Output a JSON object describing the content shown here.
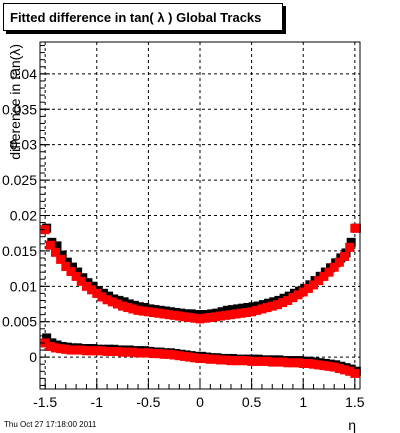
{
  "chart_data": {
    "type": "scatter",
    "title": "Fitted difference in tan( λ )  Global Tracks",
    "xlabel": "η",
    "ylabel": "difference in tan(λ)",
    "xlim": [
      -1.55,
      1.55
    ],
    "ylim": [
      -0.0045,
      0.0445
    ],
    "grid": true,
    "x_ticks": [
      -1.5,
      -1,
      -0.5,
      0,
      0.5,
      1,
      1.5
    ],
    "x_tick_labels": [
      "-1.5",
      "-1",
      "-0.5",
      "0",
      "0.5",
      "1",
      "1.5"
    ],
    "y_ticks": [
      0,
      0.005,
      0.01,
      0.015,
      0.02,
      0.025,
      0.03,
      0.035,
      0.04
    ],
    "y_tick_labels": [
      "0",
      "0.005",
      "0.01",
      "0.015",
      "0.02",
      "0.025",
      "0.03",
      "0.035",
      "0.04"
    ],
    "colors": {
      "series_a": "#000000",
      "series_b": "#ff0000"
    },
    "series": [
      {
        "marker": "square",
        "color": "#000000",
        "x": [
          -1.5,
          -1.45,
          -1.4,
          -1.35,
          -1.3,
          -1.25,
          -1.2,
          -1.15,
          -1.1,
          -1.05,
          -1.0,
          -0.95,
          -0.9,
          -0.85,
          -0.8,
          -0.75,
          -0.7,
          -0.65,
          -0.6,
          -0.55,
          -0.5,
          -0.45,
          -0.4,
          -0.35,
          -0.3,
          -0.25,
          -0.2,
          -0.15,
          -0.1,
          -0.05,
          0.0,
          0.05,
          0.1,
          0.15,
          0.2,
          0.25,
          0.3,
          0.35,
          0.4,
          0.45,
          0.5,
          0.55,
          0.6,
          0.65,
          0.7,
          0.75,
          0.8,
          0.85,
          0.9,
          0.95,
          1.0,
          1.05,
          1.1,
          1.15,
          1.2,
          1.25,
          1.3,
          1.35,
          1.4,
          1.45,
          1.5
        ],
        "y_upper": [
          0.018,
          0.016,
          0.0155,
          0.0142,
          0.0132,
          0.0125,
          0.0118,
          0.011,
          0.0103,
          0.0098,
          0.0092,
          0.0088,
          0.0084,
          0.008,
          0.0078,
          0.0076,
          0.0073,
          0.0071,
          0.0069,
          0.0068,
          0.0066,
          0.0065,
          0.0064,
          0.0063,
          0.0062,
          0.0061,
          0.006,
          0.0059,
          0.0059,
          0.0058,
          0.0058,
          0.0058,
          0.0059,
          0.006,
          0.0062,
          0.0064,
          0.0065,
          0.0066,
          0.0067,
          0.0068,
          0.0069,
          0.007,
          0.0072,
          0.0074,
          0.0076,
          0.0078,
          0.0081,
          0.0084,
          0.0088,
          0.0091,
          0.0095,
          0.01,
          0.0106,
          0.0112,
          0.0118,
          0.0124,
          0.0131,
          0.0138,
          0.0145,
          0.016,
          0.018
        ],
        "y_lower": [
          0.0025,
          0.0018,
          0.0015,
          0.0013,
          0.0012,
          0.0011,
          0.0011,
          0.001,
          0.001,
          0.001,
          0.0009,
          0.0009,
          0.0009,
          0.0009,
          0.0008,
          0.0008,
          0.0008,
          0.0007,
          0.0007,
          0.0007,
          0.0006,
          0.0005,
          0.0005,
          0.0004,
          0.0004,
          0.0003,
          0.0002,
          0.0001,
          0.0,
          -0.0001,
          -0.0001,
          -0.0002,
          -0.0003,
          -0.0003,
          -0.0004,
          -0.0004,
          -0.0004,
          -0.0005,
          -0.0005,
          -0.0005,
          -0.0005,
          -0.0005,
          -0.0006,
          -0.0006,
          -0.0006,
          -0.0006,
          -0.0007,
          -0.0007,
          -0.0007,
          -0.0007,
          -0.0008,
          -0.0008,
          -0.0009,
          -0.001,
          -0.0011,
          -0.0012,
          -0.0013,
          -0.0015,
          -0.0017,
          -0.0019,
          -0.0022
        ]
      },
      {
        "marker": "square",
        "color": "#ff0000",
        "x": [
          -1.5,
          -1.45,
          -1.4,
          -1.35,
          -1.3,
          -1.25,
          -1.2,
          -1.15,
          -1.1,
          -1.05,
          -1.0,
          -0.95,
          -0.9,
          -0.85,
          -0.8,
          -0.75,
          -0.7,
          -0.65,
          -0.6,
          -0.55,
          -0.5,
          -0.45,
          -0.4,
          -0.35,
          -0.3,
          -0.25,
          -0.2,
          -0.15,
          -0.1,
          -0.05,
          0.0,
          0.05,
          0.1,
          0.15,
          0.2,
          0.25,
          0.3,
          0.35,
          0.4,
          0.45,
          0.5,
          0.55,
          0.6,
          0.65,
          0.7,
          0.75,
          0.8,
          0.85,
          0.9,
          0.95,
          1.0,
          1.05,
          1.1,
          1.15,
          1.2,
          1.25,
          1.3,
          1.35,
          1.4,
          1.45,
          1.5
        ],
        "y_upper": [
          0.018,
          0.0158,
          0.0148,
          0.0138,
          0.0128,
          0.0121,
          0.0114,
          0.0107,
          0.01,
          0.0095,
          0.009,
          0.0085,
          0.0081,
          0.0078,
          0.0075,
          0.0072,
          0.007,
          0.0068,
          0.0066,
          0.0065,
          0.0064,
          0.0063,
          0.0062,
          0.0061,
          0.006,
          0.0059,
          0.0058,
          0.0057,
          0.0056,
          0.0055,
          0.0054,
          0.0055,
          0.0056,
          0.0057,
          0.0058,
          0.0059,
          0.006,
          0.0061,
          0.0062,
          0.0063,
          0.0064,
          0.0066,
          0.0068,
          0.007,
          0.0072,
          0.0074,
          0.0077,
          0.008,
          0.0084,
          0.0088,
          0.0092,
          0.0097,
          0.0102,
          0.0108,
          0.0114,
          0.012,
          0.0127,
          0.0134,
          0.0142,
          0.0155,
          0.0182
        ],
        "y_lower": [
          0.002,
          0.0015,
          0.0013,
          0.0012,
          0.0011,
          0.001,
          0.001,
          0.001,
          0.0009,
          0.0009,
          0.0009,
          0.0009,
          0.0008,
          0.0008,
          0.0008,
          0.0007,
          0.0007,
          0.0007,
          0.0006,
          0.0006,
          0.0006,
          0.0005,
          0.0005,
          0.0004,
          0.0004,
          0.0003,
          0.0002,
          0.0001,
          0.0,
          -0.0001,
          -0.0002,
          -0.0002,
          -0.0003,
          -0.0003,
          -0.0004,
          -0.0004,
          -0.0005,
          -0.0005,
          -0.0005,
          -0.0005,
          -0.0006,
          -0.0006,
          -0.0006,
          -0.0006,
          -0.0007,
          -0.0007,
          -0.0007,
          -0.0008,
          -0.0008,
          -0.0008,
          -0.0009,
          -0.0009,
          -0.001,
          -0.0011,
          -0.0012,
          -0.0013,
          -0.0014,
          -0.0016,
          -0.0018,
          -0.002,
          -0.0023
        ]
      }
    ]
  },
  "footer": {
    "timestamp": "Thu Oct 27 17:18:00 2011"
  }
}
